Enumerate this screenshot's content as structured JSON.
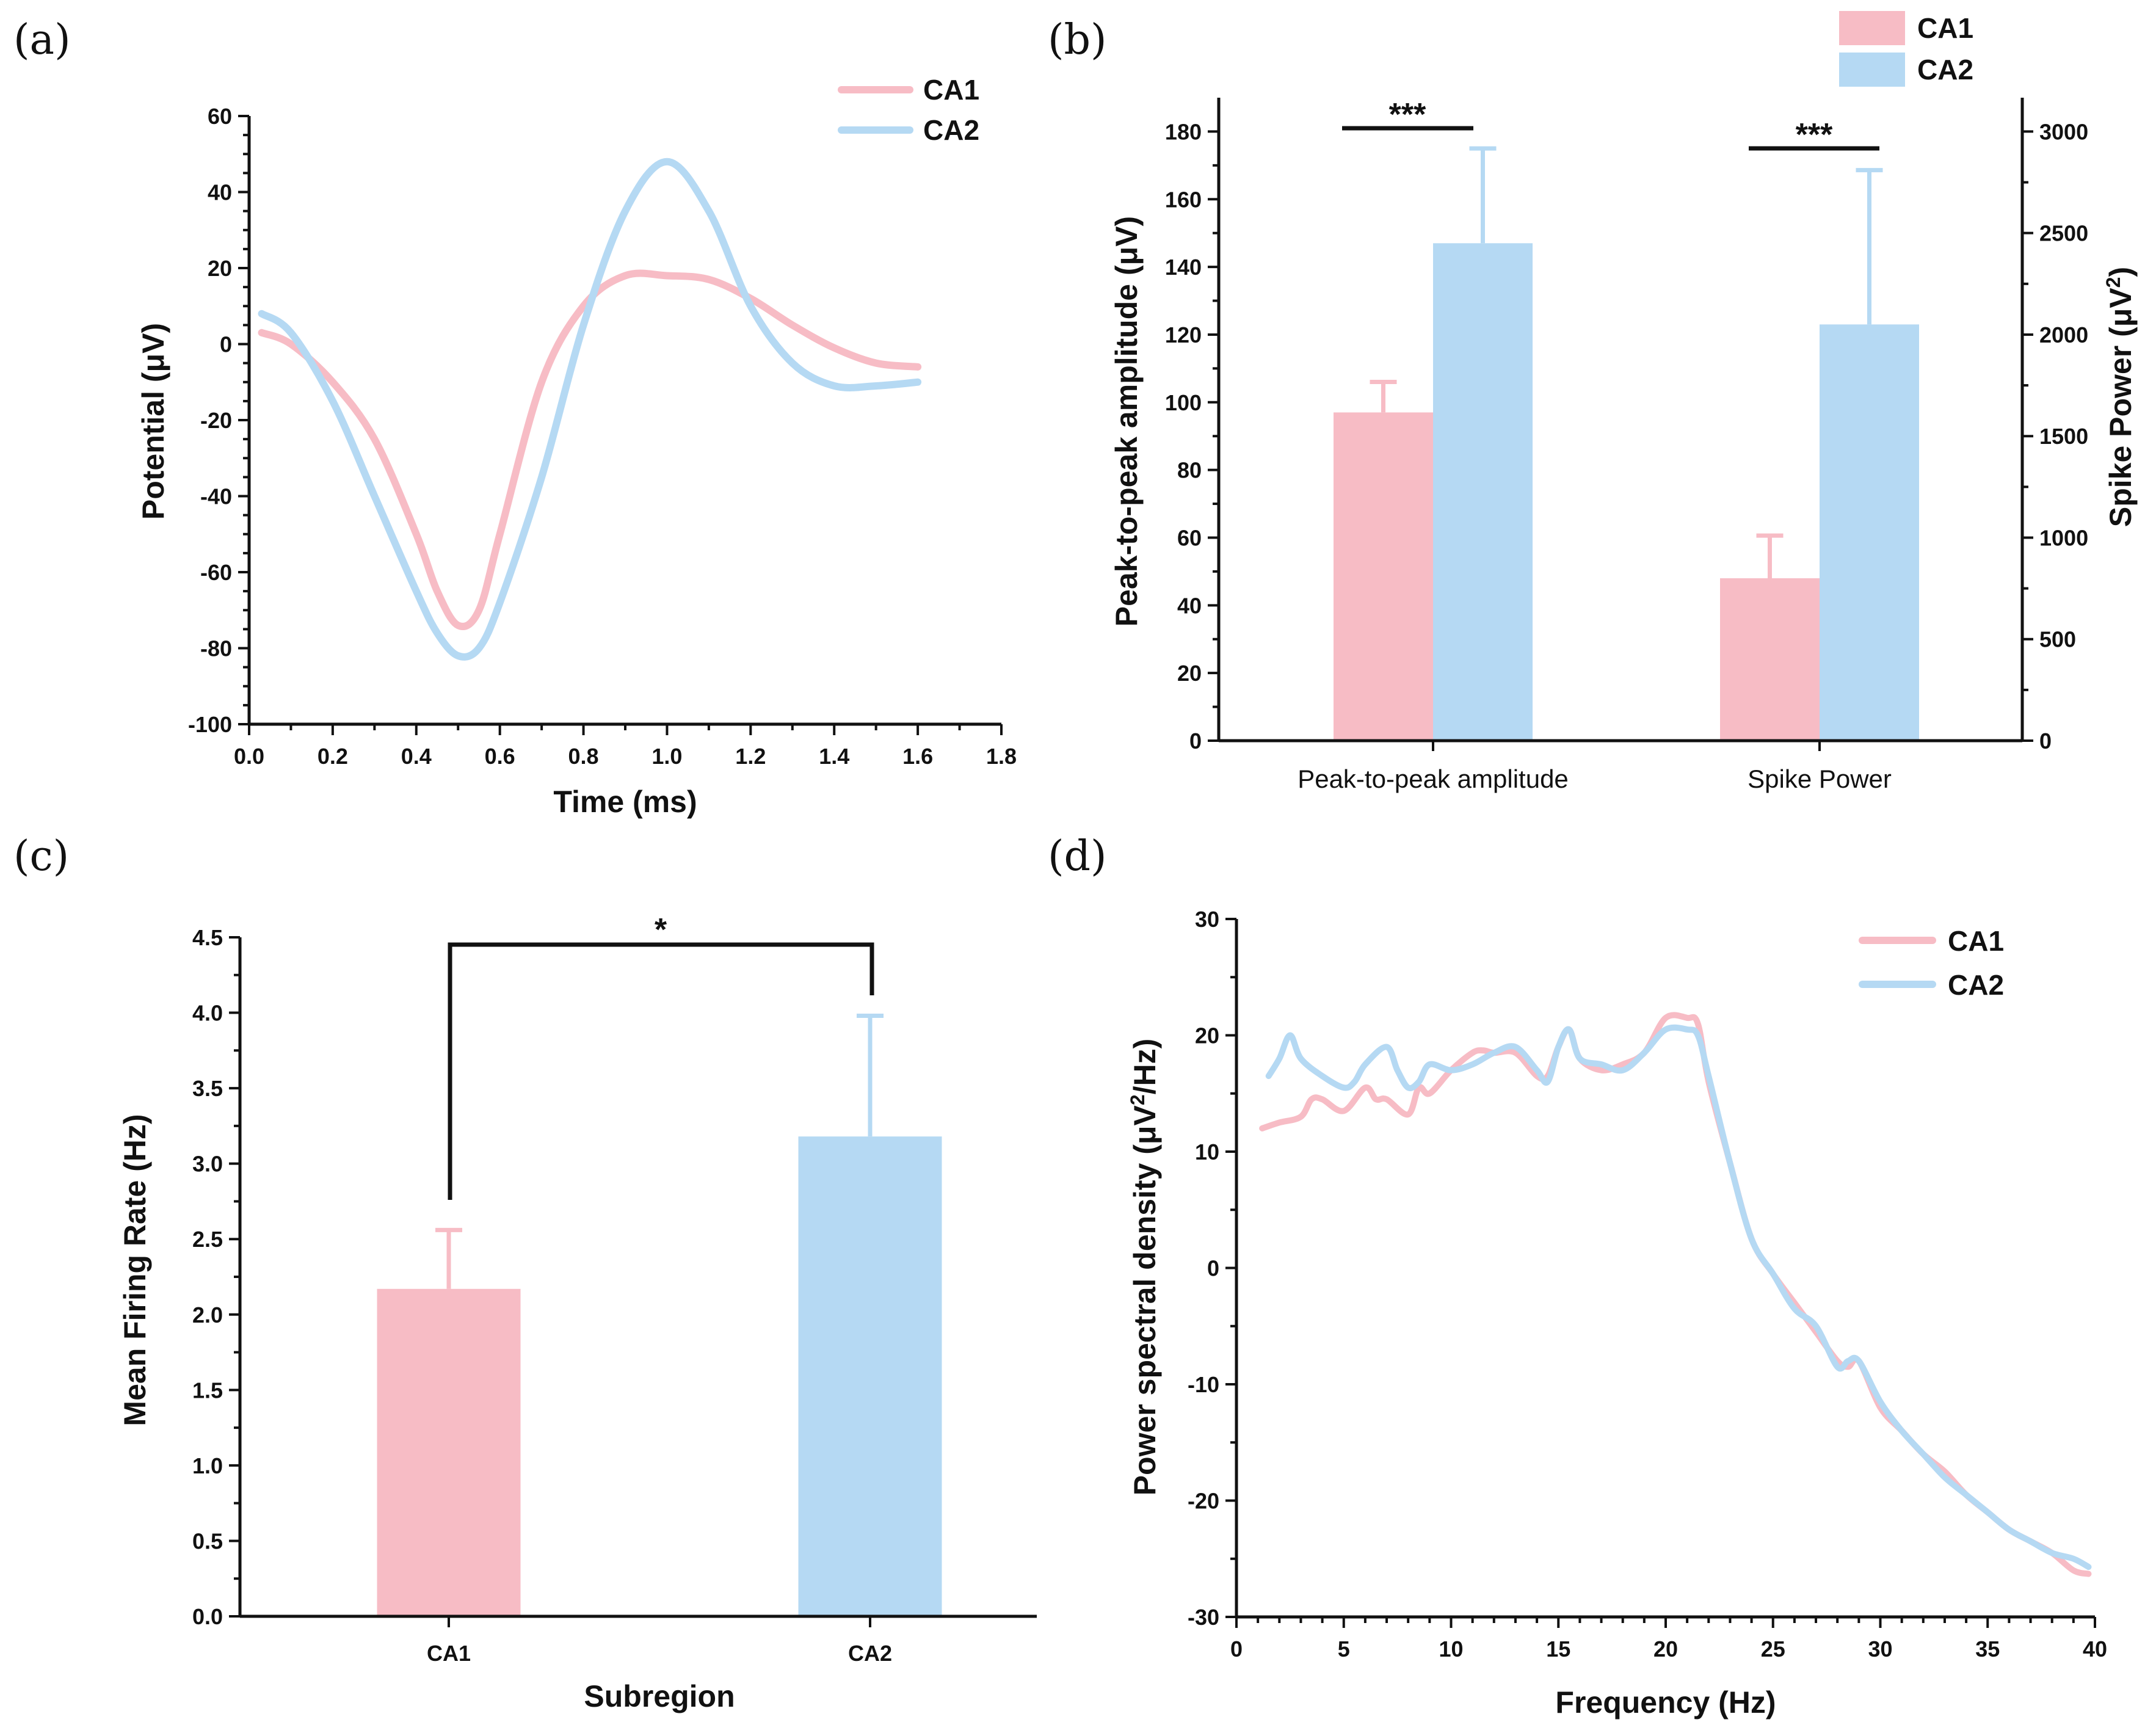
{
  "colors": {
    "ca1": "#f7bcc5",
    "ca2": "#b5d9f3",
    "axis": "#111111"
  },
  "chart_data": [
    {
      "panel": "(a)",
      "type": "line",
      "xlabel": "Time (ms)",
      "ylabel": "Potential (μV)",
      "xlim": [
        0.0,
        1.8
      ],
      "ylim": [
        -100,
        60
      ],
      "xticks": [
        0.0,
        0.2,
        0.4,
        0.6,
        0.8,
        1.0,
        1.2,
        1.4,
        1.6,
        1.8
      ],
      "xtick_labels": [
        "0.0",
        "0.2",
        "0.4",
        "0.6",
        "0.8",
        "1.0",
        "1.2",
        "1.4",
        "1.6",
        "1.8"
      ],
      "yticks": [
        -100,
        -80,
        -60,
        -40,
        -20,
        0,
        20,
        40,
        60
      ],
      "ytick_labels": [
        "-100",
        "-80",
        "-60",
        "-40",
        "-20",
        "0",
        "20",
        "40",
        "60"
      ],
      "legend": [
        "CA1",
        "CA2"
      ],
      "series": [
        {
          "name": "CA1",
          "x": [
            0.03,
            0.1,
            0.2,
            0.3,
            0.4,
            0.45,
            0.5,
            0.55,
            0.6,
            0.7,
            0.8,
            0.9,
            1.0,
            1.1,
            1.2,
            1.3,
            1.4,
            1.5,
            1.6
          ],
          "y": [
            3,
            0,
            -10,
            -25,
            -50,
            -65,
            -74,
            -70,
            -50,
            -10,
            10,
            18,
            18,
            17,
            12,
            5,
            -1,
            -5,
            -6
          ]
        },
        {
          "name": "CA2",
          "x": [
            0.03,
            0.1,
            0.2,
            0.3,
            0.4,
            0.45,
            0.5,
            0.55,
            0.6,
            0.7,
            0.8,
            0.9,
            1.0,
            1.1,
            1.2,
            1.3,
            1.4,
            1.5,
            1.6
          ],
          "y": [
            8,
            3,
            -15,
            -40,
            -65,
            -76,
            -82,
            -80,
            -68,
            -35,
            5,
            35,
            48,
            35,
            10,
            -5,
            -11,
            -11,
            -10
          ]
        }
      ]
    },
    {
      "panel": "(b)",
      "type": "bar",
      "categories": [
        "Peak-to-peak amplitude",
        "Spike Power"
      ],
      "ylabel": "Peak-to-peak amplitude (μV)",
      "ylabel2_main": "Spike Power (μV",
      "ylabel2_sup": "2",
      "ylabel2_end": ")",
      "ylim": [
        0,
        190
      ],
      "yticks": [
        0,
        20,
        40,
        60,
        80,
        100,
        120,
        140,
        160,
        180
      ],
      "ytick_labels": [
        "0",
        "20",
        "40",
        "60",
        "80",
        "100",
        "120",
        "140",
        "160",
        "180"
      ],
      "y2lim": [
        0,
        3166.67
      ],
      "y2ticks": [
        0,
        500,
        1000,
        1500,
        2000,
        2500,
        3000
      ],
      "y2tick_labels": [
        "0",
        "500",
        "1000",
        "1500",
        "2000",
        "2500",
        "3000"
      ],
      "legend": [
        "CA1",
        "CA2"
      ],
      "series": [
        {
          "name": "CA1",
          "values": [
            97,
            800
          ],
          "errors": [
            9,
            210
          ],
          "axis": [
            "left",
            "right"
          ]
        },
        {
          "name": "CA2",
          "values": [
            147,
            2050
          ],
          "errors": [
            28,
            760
          ],
          "axis": [
            "left",
            "right"
          ]
        }
      ],
      "significance": [
        "***",
        "***"
      ]
    },
    {
      "panel": "(c)",
      "type": "bar",
      "categories": [
        "CA1",
        "CA2"
      ],
      "xlabel": "Subregion",
      "ylabel": "Mean Firing Rate (Hz)",
      "ylim": [
        0,
        4.5
      ],
      "yticks": [
        0,
        0.5,
        1.0,
        1.5,
        2.0,
        2.5,
        3.0,
        3.5,
        4.0,
        4.5
      ],
      "ytick_labels": [
        "0.0",
        "0.5",
        "1.0",
        "1.5",
        "2.0",
        "2.5",
        "3.0",
        "3.5",
        "4.0",
        "4.5"
      ],
      "values": [
        2.17,
        3.18
      ],
      "errors": [
        0.39,
        0.8
      ],
      "significance": "*"
    },
    {
      "panel": "(d)",
      "type": "line",
      "xlabel": "Frequency (Hz)",
      "ylabel_main": "Power spectral density (μV",
      "ylabel_sup": "2",
      "ylabel_end": "/Hz)",
      "xlim": [
        0,
        40
      ],
      "ylim": [
        -30,
        30
      ],
      "xticks": [
        0,
        5,
        10,
        15,
        20,
        25,
        30,
        35,
        40
      ],
      "xtick_labels": [
        "0",
        "5",
        "10",
        "15",
        "20",
        "25",
        "30",
        "35",
        "40"
      ],
      "yticks": [
        -30,
        -20,
        -10,
        0,
        10,
        20,
        30
      ],
      "ytick_labels": [
        "-30",
        "-20",
        "-10",
        "0",
        "10",
        "20",
        "30"
      ],
      "legend": [
        "CA1",
        "CA2"
      ],
      "series": [
        {
          "name": "CA1",
          "x": [
            1.2,
            2,
            3,
            3.5,
            4,
            5,
            6,
            6.5,
            7,
            8,
            8.5,
            9,
            10,
            11,
            11.5,
            12,
            13,
            14,
            14.5,
            15,
            15.5,
            16,
            17,
            18,
            19,
            20,
            21,
            21.5,
            22,
            23,
            24,
            25,
            26,
            27,
            28,
            28.5,
            29,
            30,
            31,
            32,
            33,
            34,
            35,
            36,
            37,
            38,
            39,
            39.7
          ],
          "y": [
            12,
            12.5,
            13,
            14.5,
            14.5,
            13.5,
            15.5,
            14.5,
            14.5,
            13.2,
            15.5,
            15,
            17,
            18.5,
            18.7,
            18.5,
            18.5,
            16.5,
            16.5,
            19,
            20.5,
            18,
            17,
            17.5,
            18.5,
            21.5,
            21.5,
            21,
            16,
            9,
            2.5,
            -0.5,
            -3,
            -5.5,
            -8,
            -8.5,
            -8,
            -12,
            -14,
            -16,
            -17.5,
            -19.5,
            -21,
            -22.5,
            -23.5,
            -24.5,
            -26,
            -26.3
          ]
        },
        {
          "name": "CA2",
          "x": [
            1.5,
            2,
            2.5,
            3,
            4,
            5,
            5.5,
            6,
            7,
            7.5,
            8,
            8.5,
            9,
            10,
            11,
            12,
            13,
            14,
            14.5,
            15,
            15.5,
            16,
            17,
            18,
            19,
            20,
            21,
            21.5,
            22,
            23,
            24,
            25,
            26,
            27,
            28,
            28.5,
            29,
            30,
            31,
            32,
            33,
            34,
            35,
            36,
            37,
            38,
            39,
            39.7
          ],
          "y": [
            16.5,
            18,
            20,
            18,
            16.5,
            15.5,
            16,
            17.5,
            19,
            17,
            15.5,
            16,
            17.5,
            17,
            17.5,
            18.5,
            19,
            17,
            16,
            19,
            20.5,
            18,
            17.5,
            17,
            18.5,
            20.5,
            20.5,
            20,
            16.5,
            9,
            2.5,
            -0.5,
            -3.5,
            -5,
            -8.5,
            -8,
            -8,
            -11.5,
            -14,
            -16,
            -18,
            -19.5,
            -21,
            -22.5,
            -23.5,
            -24.5,
            -25,
            -25.7
          ]
        }
      ]
    }
  ]
}
